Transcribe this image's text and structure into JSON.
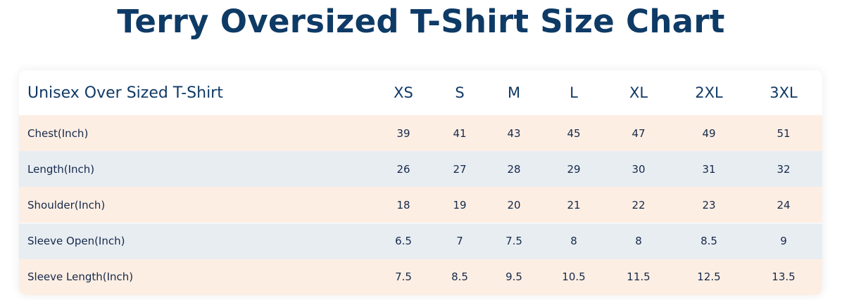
{
  "title": "Terry Oversized T-Shirt Size Chart",
  "table": {
    "header_label": "Unisex Over Sized T-Shirt",
    "sizes": [
      "XS",
      "S",
      "M",
      "L",
      "XL",
      "2XL",
      "3XL"
    ],
    "rows": [
      {
        "label": "Chest(Inch)",
        "values": [
          "39",
          "41",
          "43",
          "45",
          "47",
          "49",
          "51"
        ]
      },
      {
        "label": "Length(Inch)",
        "values": [
          "26",
          "27",
          "28",
          "29",
          "30",
          "31",
          "32"
        ]
      },
      {
        "label": "Shoulder(Inch)",
        "values": [
          "18",
          "19",
          "20",
          "21",
          "22",
          "23",
          "24"
        ]
      },
      {
        "label": "Sleeve Open(Inch)",
        "values": [
          "6.5",
          "7",
          "7.5",
          "8",
          "8",
          "8.5",
          "9"
        ]
      },
      {
        "label": "Sleeve Length(Inch)",
        "values": [
          "7.5",
          "8.5",
          "9.5",
          "10.5",
          "11.5",
          "12.5",
          "13.5"
        ]
      }
    ]
  },
  "colors": {
    "title": "#0e3a66",
    "row_odd": "#fdeee3",
    "row_even": "#e8edf2"
  }
}
